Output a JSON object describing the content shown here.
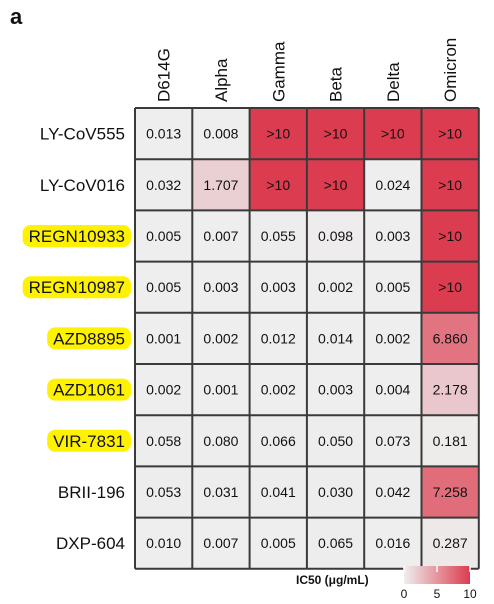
{
  "panel_letter": "a",
  "chart_data": {
    "type": "heatmap",
    "title": "",
    "columns": [
      "D614G",
      "Alpha",
      "Gamma",
      "Beta",
      "Delta",
      "Omicron"
    ],
    "rows": [
      "LY-CoV555",
      "LY-CoV016",
      "REGN10933",
      "REGN10987",
      "AZD8895",
      "AZD1061",
      "VIR-7831",
      "BRII-196",
      "DXP-604"
    ],
    "highlighted_rows": [
      "REGN10933",
      "REGN10987",
      "AZD8895",
      "AZD1061",
      "VIR-7831"
    ],
    "values": [
      [
        0.013,
        0.008,
        10,
        10,
        10,
        10
      ],
      [
        0.032,
        1.707,
        10,
        10,
        0.024,
        10
      ],
      [
        0.005,
        0.007,
        0.055,
        0.098,
        0.003,
        10
      ],
      [
        0.005,
        0.003,
        0.003,
        0.002,
        0.005,
        10
      ],
      [
        0.001,
        0.002,
        0.012,
        0.014,
        0.002,
        6.86
      ],
      [
        0.002,
        0.001,
        0.002,
        0.003,
        0.004,
        2.178
      ],
      [
        0.058,
        0.08,
        0.066,
        0.05,
        0.073,
        0.181
      ],
      [
        0.053,
        0.031,
        0.041,
        0.03,
        0.042,
        7.258
      ],
      [
        0.01,
        0.007,
        0.005,
        0.065,
        0.016,
        0.287
      ]
    ],
    "labels": [
      [
        "0.013",
        "0.008",
        ">10",
        ">10",
        ">10",
        ">10"
      ],
      [
        "0.032",
        "1.707",
        ">10",
        ">10",
        "0.024",
        ">10"
      ],
      [
        "0.005",
        "0.007",
        "0.055",
        "0.098",
        "0.003",
        ">10"
      ],
      [
        "0.005",
        "0.003",
        "0.003",
        "0.002",
        "0.005",
        ">10"
      ],
      [
        "0.001",
        "0.002",
        "0.012",
        "0.014",
        "0.002",
        "6.860"
      ],
      [
        "0.002",
        "0.001",
        "0.002",
        "0.003",
        "0.004",
        "2.178"
      ],
      [
        "0.058",
        "0.080",
        "0.066",
        "0.050",
        "0.073",
        "0.181"
      ],
      [
        "0.053",
        "0.031",
        "0.041",
        "0.030",
        "0.042",
        "7.258"
      ],
      [
        "0.010",
        "0.007",
        "0.005",
        "0.065",
        "0.016",
        "0.287"
      ]
    ],
    "legend": {
      "title": "IC50 (μg/mL)",
      "ticks": [
        "0",
        "5",
        "10"
      ],
      "range": [
        0,
        10
      ]
    },
    "colors": {
      "low": "#eeeeee",
      "high": "#dc3c50",
      "grid": "#3a3a3a",
      "highlight": "#fff200"
    }
  }
}
